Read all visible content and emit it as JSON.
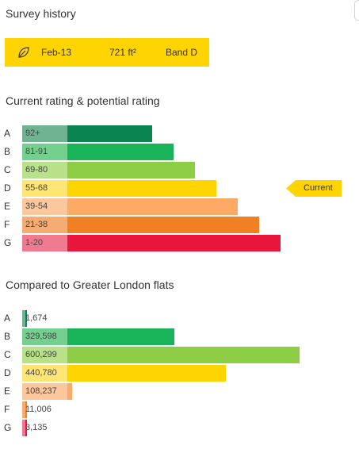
{
  "survey": {
    "title": "Survey history",
    "date": "Feb-13",
    "area": "721 ft²",
    "band": "Band D"
  },
  "rating": {
    "title": "Current rating & potential rating",
    "current_label": "Current",
    "current_band": "D",
    "bands": [
      {
        "letter": "A",
        "range": "92+",
        "color": "#0a8552",
        "light": "#6fb393"
      },
      {
        "letter": "B",
        "range": "81-91",
        "color": "#19b459",
        "light": "#73d08f"
      },
      {
        "letter": "C",
        "range": "69-80",
        "color": "#8dce46",
        "light": "#b9e18a"
      },
      {
        "letter": "D",
        "range": "55-68",
        "color": "#ffd500",
        "light": "#ffe573"
      },
      {
        "letter": "E",
        "range": "39-54",
        "color": "#fcaa65",
        "light": "#fdc79d"
      },
      {
        "letter": "F",
        "range": "21-38",
        "color": "#ef8023",
        "light": "#f5ac72"
      },
      {
        "letter": "G",
        "range": "1-20",
        "color": "#e9153b",
        "light": "#f07a8f"
      }
    ]
  },
  "comparison": {
    "title": "Compared to Greater London flats",
    "bands": [
      {
        "letter": "A",
        "count": "1,674",
        "value": 1674,
        "color": "#0a8552",
        "light": "#6fb393"
      },
      {
        "letter": "B",
        "count": "329,598",
        "value": 329598,
        "color": "#19b459",
        "light": "#73d08f"
      },
      {
        "letter": "C",
        "count": "600,299",
        "value": 600299,
        "color": "#8dce46",
        "light": "#b9e18a"
      },
      {
        "letter": "D",
        "count": "440,780",
        "value": 440780,
        "color": "#ffd500",
        "light": "#ffe573"
      },
      {
        "letter": "E",
        "count": "108,237",
        "value": 108237,
        "color": "#fcaa65",
        "light": "#fdc79d"
      },
      {
        "letter": "F",
        "count": "11,006",
        "value": 11006,
        "color": "#ef8023",
        "light": "#f5ac72"
      },
      {
        "letter": "G",
        "count": "3,135",
        "value": 3135,
        "color": "#e9153b",
        "light": "#f07a8f"
      }
    ]
  },
  "icons": {
    "survey_icon": "leaf-icon",
    "current_marker": "arrow-tag-icon"
  }
}
